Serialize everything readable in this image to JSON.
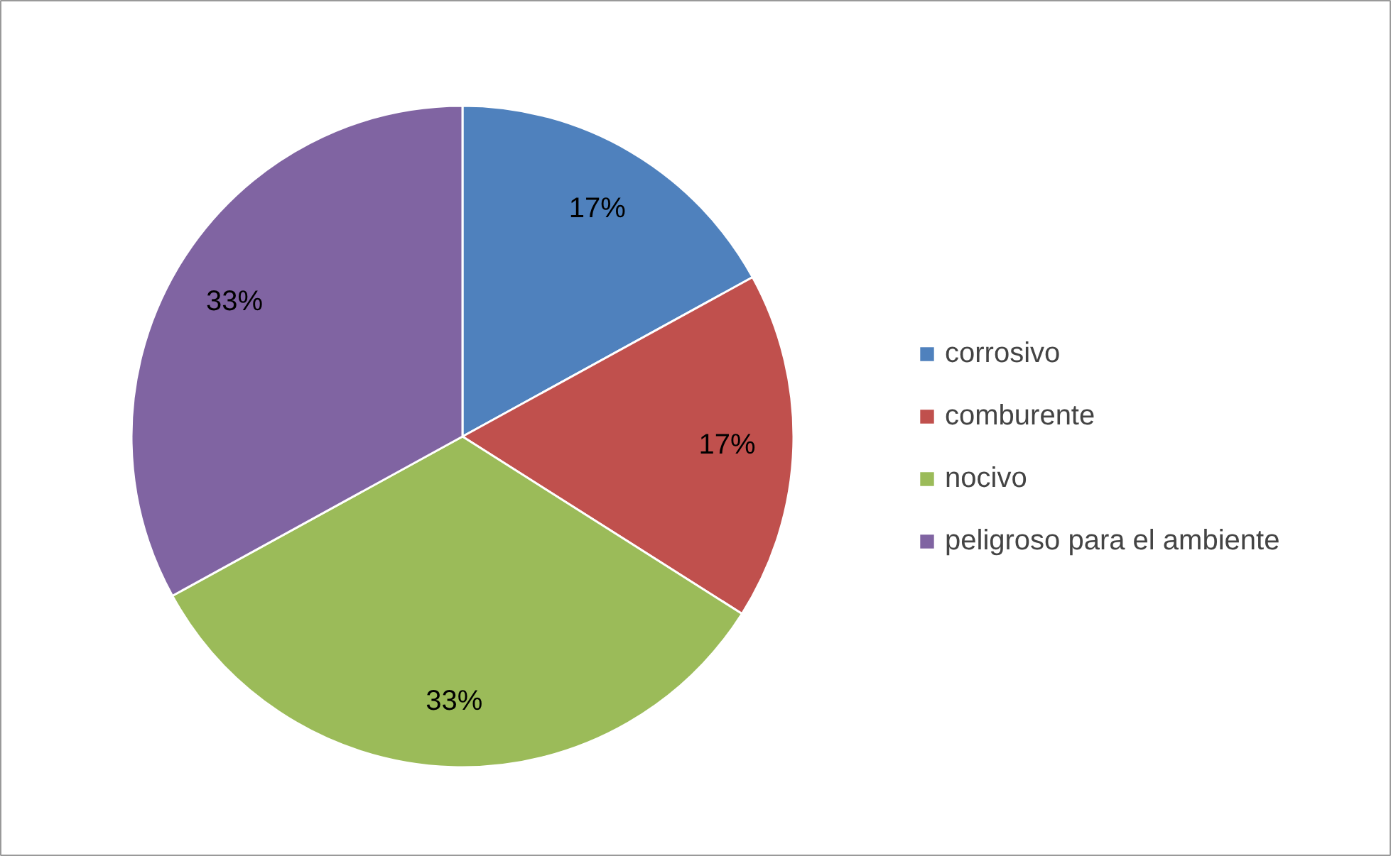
{
  "chart_data": {
    "type": "pie",
    "categories": [
      "corrosivo",
      "comburente",
      "nocivo",
      "peligroso para el ambiente"
    ],
    "values": [
      17,
      17,
      33,
      33
    ],
    "colors": [
      "#4f81bd",
      "#c0504d",
      "#9bbb59",
      "#8064a2"
    ],
    "value_labels": [
      "17%",
      "17%",
      "33%",
      "33%"
    ],
    "legend": "right"
  }
}
